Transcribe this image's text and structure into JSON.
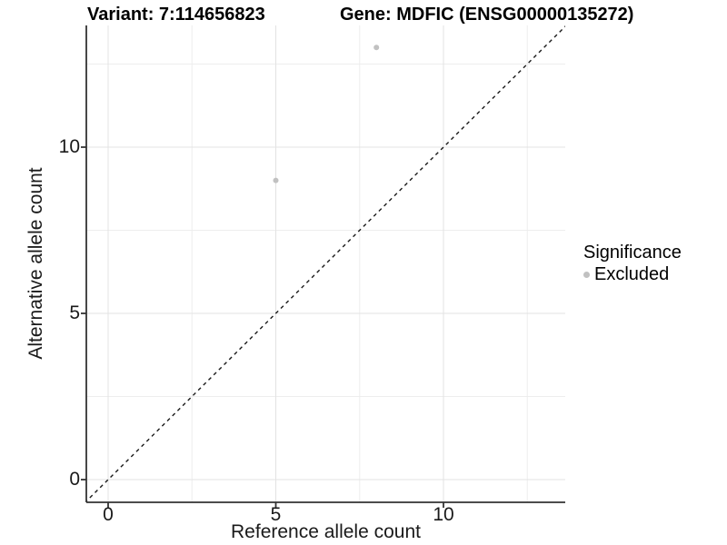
{
  "header": {
    "variant_title": "Variant: 7:114656823",
    "gene_title": "Gene: MDFIC (ENSG00000135272)"
  },
  "axes": {
    "x_label": "Reference allele count",
    "y_label": "Alternative allele count"
  },
  "legend": {
    "title": "Significance",
    "items": [
      {
        "label": "Excluded",
        "color": "#c1c1c1"
      }
    ]
  },
  "colors": {
    "point": "#c1c1c1",
    "grid_major": "#e3e3e3",
    "grid_minor": "#ededed",
    "axis_line": "#333333",
    "dashed_line": "#1a1a1a"
  },
  "chart_data": {
    "type": "scatter",
    "title_left": "Variant: 7:114656823",
    "title_right": "Gene: MDFIC (ENSG00000135272)",
    "xlabel": "Reference allele count",
    "ylabel": "Alternative allele count",
    "xlim": [
      -0.7,
      13.7
    ],
    "ylim": [
      -0.7,
      13.7
    ],
    "x_ticks": [
      0,
      5,
      10
    ],
    "y_ticks": [
      0,
      5,
      10
    ],
    "x_minor_gridlines": [
      2.5,
      7.5,
      12.5
    ],
    "y_minor_gridlines": [
      2.5,
      7.5,
      12.5
    ],
    "grid": "on",
    "legend_position": "right",
    "series": [
      {
        "name": "Excluded",
        "color": "#c1c1c1",
        "points": [
          {
            "x": 5,
            "y": 9
          },
          {
            "x": 8,
            "y": 13
          }
        ]
      }
    ],
    "reference_line": {
      "type": "identity",
      "style": "dashed"
    }
  }
}
